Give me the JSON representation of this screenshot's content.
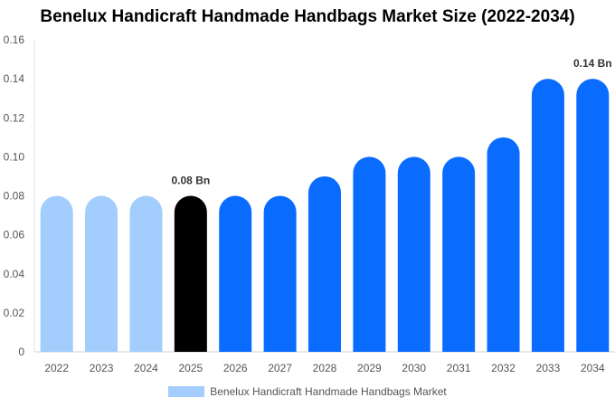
{
  "chart_data": {
    "type": "bar",
    "title": "Benelux Handicraft Handmade Handbags Market Size (2022-2034)",
    "categories": [
      "2022",
      "2023",
      "2024",
      "2025",
      "2026",
      "2027",
      "2028",
      "2029",
      "2030",
      "2031",
      "2032",
      "2033",
      "2034"
    ],
    "series": [
      {
        "name": "Benelux Handicraft Handmade Handbags Market",
        "values": [
          0.08,
          0.08,
          0.08,
          0.08,
          0.08,
          0.08,
          0.09,
          0.1,
          0.1,
          0.1,
          0.11,
          0.14,
          0.14
        ]
      }
    ],
    "bar_colors": [
      "#a3cdfd",
      "#a3cdfd",
      "#a3cdfd",
      "#000000",
      "#0a6cff",
      "#0a6cff",
      "#0a6cff",
      "#0a6cff",
      "#0a6cff",
      "#0a6cff",
      "#0a6cff",
      "#0a6cff",
      "#0a6cff"
    ],
    "legend_color": "#a3cdfd",
    "ylim": [
      0,
      0.16
    ],
    "yticks": [
      "0",
      "0.02",
      "0.04",
      "0.06",
      "0.08",
      "0.10",
      "0.12",
      "0.14",
      "0.16"
    ],
    "grid": false,
    "legend_position": "bottom",
    "annotations": [
      {
        "category": "2025",
        "text": "0.08 Bn"
      },
      {
        "category": "2034",
        "text": "0.14 Bn"
      }
    ]
  }
}
